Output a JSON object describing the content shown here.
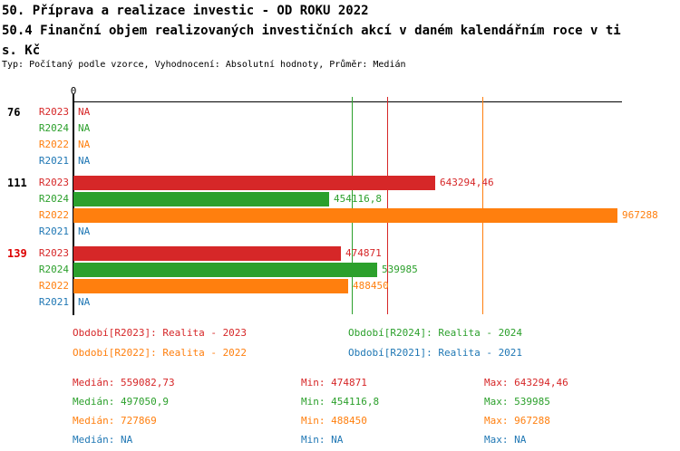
{
  "header": {
    "title_line1": "50. Příprava a realizace investic - OD ROKU 2022",
    "title_line2": "50.4 Finanční objem realizovaných investičních akcí v daném kalendářním roce v ti",
    "title_line3": "s. Kč",
    "meta": "Typ: Počítaný podle vzorce, Vyhodnocení: Absolutní hodnoty, Průměr: Medián"
  },
  "chart_data": {
    "type": "bar",
    "orientation": "horizontal",
    "value_unit": "tis. Kč",
    "grid": "median-lines-only",
    "axis": {
      "min": 0,
      "zero_tick_label": "0",
      "approx_max": 975000
    },
    "na_label": "NA",
    "series": [
      {
        "id": "R2023",
        "name": "Realita - 2023",
        "color": "#d62728"
      },
      {
        "id": "R2024",
        "name": "Realita - 2024",
        "color": "#2ca02c"
      },
      {
        "id": "R2022",
        "name": "Realita - 2022",
        "color": "#ff7f0e"
      },
      {
        "id": "R2021",
        "name": "Realita - 2021",
        "color": "#1f77b4"
      }
    ],
    "groups": [
      {
        "label": "76",
        "label_color": "#000000",
        "values": {
          "R2023": null,
          "R2024": null,
          "R2022": null,
          "R2021": null
        },
        "value_labels": {
          "R2023": "NA",
          "R2024": "NA",
          "R2022": "NA",
          "R2021": "NA"
        }
      },
      {
        "label": "111",
        "label_color": "#000000",
        "values": {
          "R2023": 643294.46,
          "R2024": 454116.8,
          "R2022": 967288,
          "R2021": null
        },
        "value_labels": {
          "R2023": "643294,46",
          "R2024": "454116,8",
          "R2022": "967288",
          "R2021": "NA"
        }
      },
      {
        "label": "139",
        "label_color": "#dd0000",
        "values": {
          "R2023": 474871,
          "R2024": 539985,
          "R2022": 488450,
          "R2021": null
        },
        "value_labels": {
          "R2023": "474871",
          "R2024": "539985",
          "R2022": "488450",
          "R2021": "NA"
        }
      }
    ],
    "median_lines": [
      {
        "series": "R2023",
        "value": 559082.73
      },
      {
        "series": "R2024",
        "value": 497050.9
      },
      {
        "series": "R2022",
        "value": 727869
      }
    ]
  },
  "legend": {
    "items": [
      {
        "series": "R2023",
        "label": "Období[R2023]: Realita - 2023",
        "row": 0,
        "col": 0
      },
      {
        "series": "R2024",
        "label": "Období[R2024]: Realita - 2024",
        "row": 0,
        "col": 1
      },
      {
        "series": "R2022",
        "label": "Období[R2022]: Realita - 2022",
        "row": 1,
        "col": 0
      },
      {
        "series": "R2021",
        "label": "Období[R2021]: Realita - 2021",
        "row": 1,
        "col": 1
      }
    ]
  },
  "stats": {
    "median_label": "Medián",
    "min_label": "Min",
    "max_label": "Max",
    "rows": [
      {
        "series": "R2023",
        "median": "559082,73",
        "min": "474871",
        "max": "643294,46"
      },
      {
        "series": "R2024",
        "median": "497050,9",
        "min": "454116,8",
        "max": "539985"
      },
      {
        "series": "R2022",
        "median": "727869",
        "min": "488450",
        "max": "967288"
      },
      {
        "series": "R2021",
        "median": "NA",
        "min": "NA",
        "max": "NA"
      }
    ]
  }
}
